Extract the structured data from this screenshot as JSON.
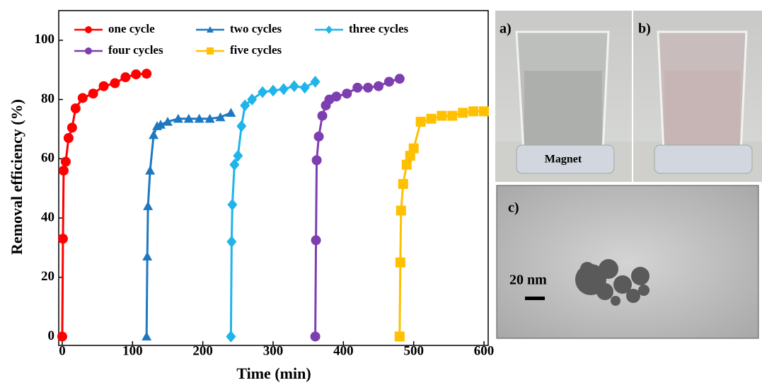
{
  "chart_data": {
    "type": "line",
    "xlabel": "Time (min)",
    "ylabel": "Removal efficiency (%)",
    "xlim": [
      -5,
      606
    ],
    "ylim": [
      -3,
      110
    ],
    "xticks": [
      0,
      100,
      200,
      300,
      400,
      500,
      600
    ],
    "yticks": [
      0,
      20,
      40,
      60,
      80,
      100
    ],
    "legend": "upper left",
    "series": [
      {
        "name": "one cycle",
        "color": "#ff0000",
        "marker": "circle",
        "x": [
          0,
          1,
          2,
          5,
          9,
          14,
          19,
          29,
          44,
          59,
          75,
          90,
          105,
          120
        ],
        "values": [
          0,
          33,
          56,
          59,
          67,
          70.5,
          77,
          80.5,
          82,
          84.5,
          85.5,
          87.5,
          88.5,
          88.7
        ]
      },
      {
        "name": "two cycles",
        "color": "#1e78c0",
        "marker": "triangle",
        "x": [
          120,
          121,
          122,
          125,
          130,
          135,
          140,
          150,
          165,
          180,
          195,
          210,
          225,
          240
        ],
        "values": [
          0,
          27,
          44,
          56,
          68,
          71,
          71.5,
          72.5,
          73.5,
          73.5,
          73.5,
          73.5,
          74,
          75.5
        ]
      },
      {
        "name": "three cycles",
        "color": "#1fb4ea",
        "marker": "diamond",
        "x": [
          240,
          241,
          242,
          245,
          250,
          255,
          260,
          270,
          285,
          300,
          315,
          330,
          345,
          360
        ],
        "values": [
          0,
          32,
          44.5,
          58,
          61,
          71,
          78,
          80,
          82.5,
          83,
          83.5,
          84.5,
          84,
          86
        ]
      },
      {
        "name": "four cycles",
        "color": "#7d3fb0",
        "marker": "circle",
        "x": [
          360,
          361,
          362,
          365,
          370,
          375,
          380,
          390,
          405,
          420,
          435,
          450,
          465,
          480
        ],
        "values": [
          0,
          32.5,
          59.5,
          67.5,
          74.5,
          78,
          80,
          81,
          82,
          84,
          84,
          84.5,
          86,
          87
        ]
      },
      {
        "name": "five cycles",
        "color": "#ffc000",
        "marker": "square",
        "x": [
          480,
          481,
          482,
          485,
          490,
          495,
          500,
          510,
          525,
          540,
          555,
          570,
          585,
          600
        ],
        "values": [
          0,
          25,
          42.5,
          51.5,
          58,
          61,
          63.5,
          72.5,
          73.5,
          74.5,
          74.5,
          75.5,
          76,
          76
        ]
      }
    ]
  },
  "panels": {
    "a": "a)",
    "b": "b)",
    "c": "c)",
    "magnet": "Magnet",
    "scale": "20 nm"
  }
}
